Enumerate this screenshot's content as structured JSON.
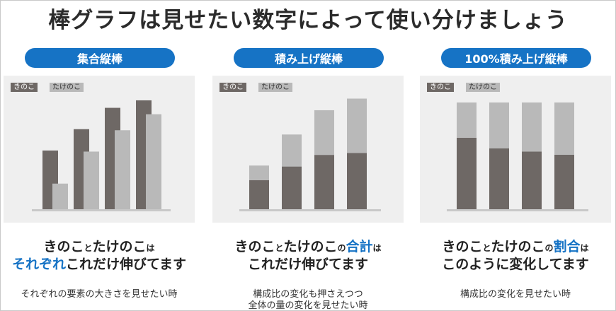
{
  "title": "棒グラフは見せたい数字によって使い分けましょう",
  "colors": {
    "accent": "#1673c5",
    "series_dark": "#6e6865",
    "series_light": "#b9b9b9",
    "panel": "#efefef",
    "axis": "#c8c8c8"
  },
  "legend": [
    "きのこ",
    "たけのこ"
  ],
  "panels": [
    {
      "label": "集合縦棒",
      "conclusion": {
        "a": "きのこ",
        "b": "と",
        "c": "たけのこ",
        "d": "は",
        "e": "それぞれ",
        "f": "これだけ伸びてます"
      },
      "note": [
        "それぞれの要素の大きさを見せたい時"
      ]
    },
    {
      "label": "積み上げ縦棒",
      "conclusion": {
        "a": "きのこ",
        "b": "と",
        "c": "たけのこ",
        "d": "の",
        "e": "合計",
        "f": "は",
        "g": "これだけ伸びてます"
      },
      "note": [
        "構成比の変化も押さえつつ",
        "全体の量の変化を見せたい時"
      ]
    },
    {
      "label": "100%積み上げ縦棒",
      "conclusion": {
        "a": "きのこ",
        "b": "と",
        "c": "たけのこ",
        "d": "の",
        "e": "割合",
        "f": "は",
        "g": "このように変化してます"
      },
      "note": [
        "構成比の変化を見せたい時"
      ]
    }
  ],
  "chart_data": [
    {
      "type": "bar",
      "categories": [
        "",
        "",
        "",
        ""
      ],
      "ylim": [
        0,
        100
      ],
      "grid": false,
      "legend_position": "top-left",
      "series": [
        {
          "name": "きのこ",
          "values": [
            55,
            75,
            95,
            102
          ]
        },
        {
          "name": "たけのこ",
          "values": [
            24,
            54,
            74,
            89
          ]
        }
      ]
    },
    {
      "type": "bar",
      "stacked": true,
      "categories": [
        "",
        "",
        "",
        ""
      ],
      "ylim": [
        0,
        110
      ],
      "grid": false,
      "legend_position": "top-left",
      "series": [
        {
          "name": "きのこ",
          "values": [
            30,
            44,
            56,
            58
          ]
        },
        {
          "name": "たけのこ",
          "values": [
            15,
            33,
            46,
            56
          ]
        }
      ]
    },
    {
      "type": "bar",
      "stacked": true,
      "percent": true,
      "categories": [
        "",
        "",
        "",
        ""
      ],
      "ylim": [
        0,
        100
      ],
      "grid": false,
      "legend_position": "top-left",
      "series": [
        {
          "name": "きのこ",
          "values": [
            67,
            57,
            54,
            51
          ]
        },
        {
          "name": "たけのこ",
          "values": [
            33,
            43,
            46,
            49
          ]
        }
      ]
    }
  ]
}
